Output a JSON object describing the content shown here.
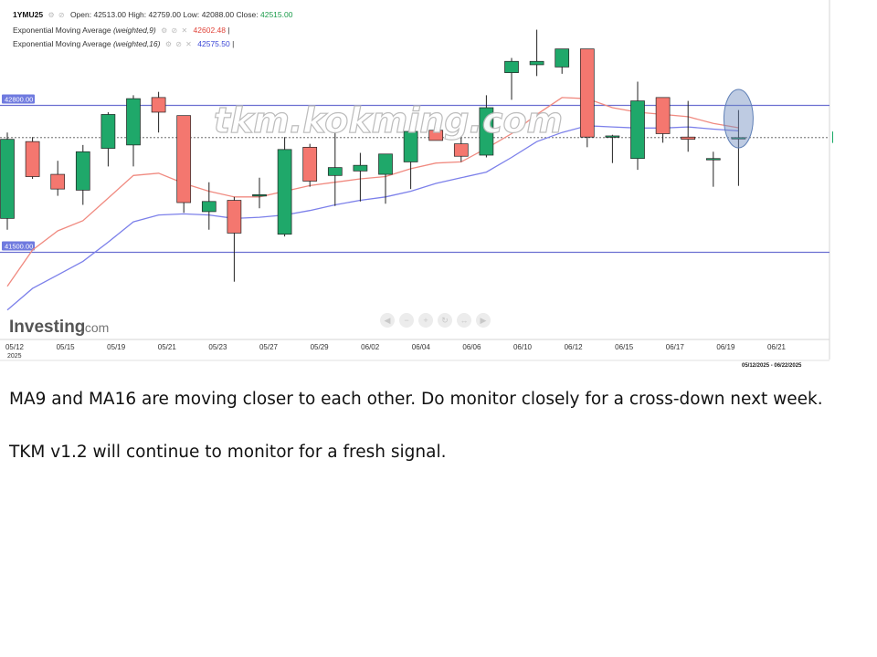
{
  "header": {
    "symbol": "1YMU25",
    "open_label": "Open:",
    "open": "42513.00",
    "high_label": "High:",
    "high": "42759.00",
    "low_label": "Low:",
    "low": "42088.00",
    "close_label": "Close:",
    "close": "42515.00",
    "ema9_label": "Exponential Moving Average",
    "ema9_params": "(weighted,9)",
    "ema9_value": "42602.48",
    "ema16_label": "Exponential Moving Average",
    "ema16_params": "(weighted,16)",
    "ema16_value": "42575.50",
    "sep": "|"
  },
  "watermark": "tkm.kokming.com",
  "brand": {
    "name": "Investing",
    "suffix": ".com"
  },
  "date_range": "05/12/2025 - 06/22/2025",
  "colors": {
    "up": "#1fa86a",
    "down": "#f4776f",
    "ema9": "#f08a80",
    "ema16": "#7c80ea",
    "level": "#6b6fd1",
    "last_badge": "#16a864",
    "level_badge": "#6f7adf"
  },
  "caption": {
    "line1": "MA9 and MA16 are moving closer to each other. Do monitor closely for a cross-down next week.",
    "line2": "TKM v1.2 will continue to monitor for a fresh signal."
  },
  "chart_data": {
    "type": "candlestick",
    "y_ticks": [
      "43619.90",
      "43388.40",
      "43156.90",
      "42925.40",
      "42693.90",
      "42462.40",
      "42230.90",
      "41999.40",
      "41767.90",
      "41536.40",
      "41304.90",
      "41073.40",
      "40841.90"
    ],
    "y_range": [
      40841.9,
      43619.9
    ],
    "x_tick_labels": [
      "05/12",
      "05/15",
      "05/19",
      "05/21",
      "05/23",
      "05/27",
      "05/29",
      "06/02",
      "06/04",
      "06/06",
      "06/10",
      "06/12",
      "06/15",
      "06/17",
      "06/19",
      "06/21"
    ],
    "x_first_year": "2025",
    "levels": [
      {
        "label": "42800.00",
        "value": 42800
      },
      {
        "label": "41500.00",
        "value": 41500
      }
    ],
    "last_price_label": "42515.00",
    "last_price": 42515,
    "candles": [
      {
        "x": 0,
        "o": 41800,
        "h": 42560,
        "l": 41700,
        "c": 42500
      },
      {
        "x": 1,
        "o": 42480,
        "h": 42520,
        "l": 42150,
        "c": 42170
      },
      {
        "x": 2,
        "o": 42190,
        "h": 42310,
        "l": 42000,
        "c": 42060
      },
      {
        "x": 3,
        "o": 42050,
        "h": 42450,
        "l": 41920,
        "c": 42390
      },
      {
        "x": 4,
        "o": 42420,
        "h": 42740,
        "l": 42260,
        "c": 42720
      },
      {
        "x": 5,
        "o": 42450,
        "h": 42890,
        "l": 42260,
        "c": 42860
      },
      {
        "x": 6,
        "o": 42870,
        "h": 42920,
        "l": 42560,
        "c": 42740
      },
      {
        "x": 7,
        "o": 42710,
        "h": 42710,
        "l": 41850,
        "c": 41940
      },
      {
        "x": 8,
        "o": 41860,
        "h": 42120,
        "l": 41700,
        "c": 41950
      },
      {
        "x": 9,
        "o": 41960,
        "h": 41990,
        "l": 41240,
        "c": 41670
      },
      {
        "x": 10,
        "o": 42010,
        "h": 42160,
        "l": 41890,
        "c": 42010
      },
      {
        "x": 11,
        "o": 41660,
        "h": 42520,
        "l": 41640,
        "c": 42410
      },
      {
        "x": 12,
        "o": 42430,
        "h": 42460,
        "l": 42080,
        "c": 42130
      },
      {
        "x": 13,
        "o": 42180,
        "h": 42590,
        "l": 41910,
        "c": 42250
      },
      {
        "x": 14,
        "o": 42220,
        "h": 42380,
        "l": 41950,
        "c": 42270
      },
      {
        "x": 15,
        "o": 42190,
        "h": 42360,
        "l": 41930,
        "c": 42370
      },
      {
        "x": 16,
        "o": 42300,
        "h": 42580,
        "l": 42060,
        "c": 42570
      },
      {
        "x": 17,
        "o": 42580,
        "h": 42610,
        "l": 42490,
        "c": 42490
      },
      {
        "x": 18,
        "o": 42460,
        "h": 42520,
        "l": 42300,
        "c": 42350
      },
      {
        "x": 19,
        "o": 42360,
        "h": 42890,
        "l": 42340,
        "c": 42780
      },
      {
        "x": 20,
        "o": 43090,
        "h": 43220,
        "l": 42850,
        "c": 43190
      },
      {
        "x": 21,
        "o": 43160,
        "h": 43470,
        "l": 43060,
        "c": 43190
      },
      {
        "x": 22,
        "o": 43140,
        "h": 43300,
        "l": 43080,
        "c": 43300
      },
      {
        "x": 23,
        "o": 43300,
        "h": 43300,
        "l": 42430,
        "c": 42520
      },
      {
        "x": 24,
        "o": 42530,
        "h": 42540,
        "l": 42290,
        "c": 42530
      },
      {
        "x": 25,
        "o": 42330,
        "h": 43010,
        "l": 42230,
        "c": 42840
      },
      {
        "x": 26,
        "o": 42870,
        "h": 42870,
        "l": 42470,
        "c": 42550
      },
      {
        "x": 27,
        "o": 42520,
        "h": 42840,
        "l": 42390,
        "c": 42500
      },
      {
        "x": 28,
        "o": 42330,
        "h": 42390,
        "l": 42080,
        "c": 42330
      },
      {
        "x": 29,
        "o": 42513,
        "h": 42759,
        "l": 42088,
        "c": 42515
      }
    ],
    "ema9": [
      41200,
      41520,
      41690,
      41780,
      41980,
      42180,
      42200,
      42110,
      42040,
      41990,
      41990,
      42040,
      42090,
      42120,
      42150,
      42170,
      42240,
      42290,
      42300,
      42420,
      42550,
      42720,
      42870,
      42860,
      42780,
      42740,
      42720,
      42700,
      42640,
      42602
    ],
    "ema16": [
      40990,
      41180,
      41300,
      41420,
      41590,
      41770,
      41830,
      41840,
      41830,
      41800,
      41810,
      41830,
      41870,
      41920,
      41960,
      41990,
      42040,
      42110,
      42160,
      42210,
      42340,
      42480,
      42560,
      42620,
      42610,
      42600,
      42600,
      42610,
      42590,
      42575
    ]
  }
}
